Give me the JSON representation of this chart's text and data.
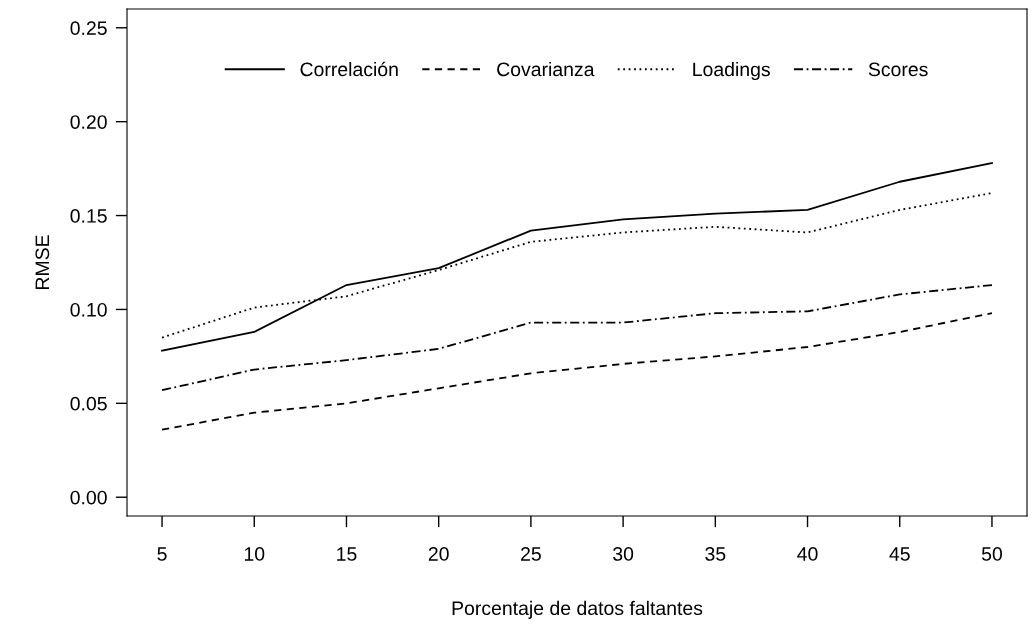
{
  "chart_data": {
    "type": "line",
    "xlabel": "Porcentaje de datos faltantes",
    "ylabel": "RMSE",
    "x": [
      5,
      10,
      15,
      20,
      25,
      30,
      35,
      40,
      45,
      50
    ],
    "xlim": [
      3.1,
      51.9
    ],
    "xticks": [
      5,
      10,
      15,
      20,
      25,
      30,
      35,
      40,
      45,
      50
    ],
    "ylim": [
      -0.01,
      0.26
    ],
    "yticks": [
      {
        "value": 0,
        "label": "0.00"
      },
      {
        "value": 0.05,
        "label": "0.05"
      },
      {
        "value": 0.1,
        "label": "0.10"
      },
      {
        "value": 0.15,
        "label": "0.15"
      },
      {
        "value": 0.2,
        "label": "0.20"
      },
      {
        "value": 0.25,
        "label": "0.25"
      }
    ],
    "grid": false,
    "legend": "top",
    "marker": "none",
    "series": [
      {
        "name": "Correlación",
        "color": "#000000",
        "line_style": "solid",
        "values": [
          0.078,
          0.088,
          0.113,
          0.122,
          0.142,
          0.148,
          0.151,
          0.153,
          0.168,
          0.178
        ]
      },
      {
        "name": "Covarianza",
        "color": "#000000",
        "line_style": "dashed",
        "values": [
          0.036,
          0.045,
          0.05,
          0.058,
          0.066,
          0.071,
          0.075,
          0.08,
          0.088,
          0.098
        ]
      },
      {
        "name": "Loadings",
        "color": "#000000",
        "line_style": "dotted",
        "values": [
          0.085,
          0.101,
          0.107,
          0.121,
          0.136,
          0.141,
          0.144,
          0.141,
          0.153,
          0.162
        ]
      },
      {
        "name": "Scores",
        "color": "#000000",
        "line_style": "dashdot",
        "values": [
          0.057,
          0.068,
          0.073,
          0.079,
          0.093,
          0.093,
          0.098,
          0.099,
          0.108,
          0.113
        ]
      }
    ]
  }
}
